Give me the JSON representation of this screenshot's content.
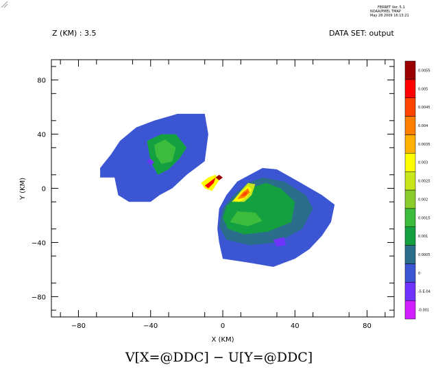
{
  "header": {
    "ferret_version": "FERRET Ver. 5.1",
    "organization": "NOAA/PMEL TMAP",
    "date": "May 28 2009 16:13:21",
    "z_label": "Z (KM) : 3.5",
    "dataset_label": "DATA SET: output"
  },
  "formula": "V[X=@DDC] − U[Y=@DDC]",
  "chart_data": {
    "type": "heatmap",
    "xlabel": "X (KM)",
    "ylabel": "Y (KM)",
    "xlim": [
      -95,
      95
    ],
    "ylim": [
      -95,
      95
    ],
    "x_ticks": [
      -80,
      -40,
      0,
      40,
      80
    ],
    "y_ticks": [
      80,
      40,
      0,
      -40,
      -80
    ],
    "x_tick_labels": [
      "−80",
      "−40",
      "0",
      "40",
      "80"
    ],
    "y_tick_labels": [
      "80",
      "40",
      "0",
      "−40",
      "−80"
    ],
    "colorbar": {
      "levels": [
        -0.001,
        -0.0005,
        0,
        0.0005,
        0.001,
        0.0015,
        0.002,
        0.0025,
        0.003,
        0.0035,
        0.004,
        0.0045,
        0.005,
        0.0055
      ],
      "labels": [
        "-0.001",
        "-5.E-04",
        "0",
        "0.0005",
        "0.001",
        "0.0015",
        "0.002",
        "0.0025",
        "0.003",
        "0.0035",
        "0.004",
        "0.0045",
        "0.005",
        "0.0055"
      ],
      "colors": [
        "#d21fff",
        "#6f35ff",
        "#3c56d3",
        "#2a6e8c",
        "#14a040",
        "#3dbb3d",
        "#8acc29",
        "#c9e61a",
        "#ffff00",
        "#ffb000",
        "#ff8000",
        "#ff4500",
        "#ff0000",
        "#9b0000"
      ]
    },
    "regions": [
      {
        "name": "west-blob-base",
        "level": 2,
        "poly": [
          [
            -68,
            15
          ],
          [
            -68,
            8
          ],
          [
            -60,
            8
          ],
          [
            -58,
            -5
          ],
          [
            -52,
            -10
          ],
          [
            -40,
            -10
          ],
          [
            -35,
            -5
          ],
          [
            -28,
            0
          ],
          [
            -20,
            10
          ],
          [
            -10,
            20
          ],
          [
            -8,
            40
          ],
          [
            -10,
            55
          ],
          [
            -25,
            55
          ],
          [
            -38,
            50
          ],
          [
            -48,
            45
          ],
          [
            -57,
            35
          ],
          [
            -62,
            25
          ]
        ]
      },
      {
        "name": "west-blob-green",
        "level": 4,
        "poly": [
          [
            -42,
            35
          ],
          [
            -34,
            40
          ],
          [
            -26,
            40
          ],
          [
            -20,
            30
          ],
          [
            -24,
            22
          ],
          [
            -30,
            14
          ],
          [
            -36,
            10
          ],
          [
            -40,
            20
          ]
        ]
      },
      {
        "name": "west-blob-green-2",
        "level": 5,
        "poly": [
          [
            -38,
            32
          ],
          [
            -32,
            36
          ],
          [
            -26,
            30
          ],
          [
            -28,
            20
          ],
          [
            -34,
            18
          ],
          [
            -37,
            24
          ]
        ]
      },
      {
        "name": "west-blob-purple",
        "level": 1,
        "poly": [
          [
            -42,
            20
          ],
          [
            -40,
            22
          ],
          [
            -38,
            19
          ],
          [
            -40,
            17
          ]
        ]
      },
      {
        "name": "east-blob-base",
        "level": 2,
        "poly": [
          [
            -2,
            -15
          ],
          [
            2,
            -5
          ],
          [
            8,
            5
          ],
          [
            15,
            10
          ],
          [
            22,
            15
          ],
          [
            30,
            14
          ],
          [
            42,
            5
          ],
          [
            55,
            -5
          ],
          [
            62,
            -12
          ],
          [
            60,
            -25
          ],
          [
            55,
            -35
          ],
          [
            48,
            -45
          ],
          [
            40,
            -52
          ],
          [
            28,
            -58
          ],
          [
            15,
            -55
          ],
          [
            0,
            -52
          ],
          [
            -2,
            -40
          ],
          [
            -3,
            -30
          ]
        ]
      },
      {
        "name": "east-blob-teal",
        "level": 3,
        "poly": [
          [
            0,
            -15
          ],
          [
            6,
            -5
          ],
          [
            14,
            4
          ],
          [
            22,
            8
          ],
          [
            34,
            5
          ],
          [
            46,
            -5
          ],
          [
            50,
            -15
          ],
          [
            44,
            -30
          ],
          [
            30,
            -40
          ],
          [
            15,
            -42
          ],
          [
            2,
            -38
          ],
          [
            -2,
            -28
          ]
        ]
      },
      {
        "name": "east-blob-green",
        "level": 4,
        "poly": [
          [
            2,
            -13
          ],
          [
            8,
            -6
          ],
          [
            15,
            0
          ],
          [
            24,
            4
          ],
          [
            32,
            0
          ],
          [
            40,
            -10
          ],
          [
            38,
            -25
          ],
          [
            25,
            -32
          ],
          [
            12,
            -34
          ],
          [
            3,
            -30
          ],
          [
            0,
            -22
          ]
        ]
      },
      {
        "name": "east-blob-green-2",
        "level": 5,
        "poly": [
          [
            4,
            -25
          ],
          [
            14,
            -28
          ],
          [
            22,
            -24
          ],
          [
            18,
            -18
          ],
          [
            8,
            -17
          ]
        ]
      },
      {
        "name": "east-blob-yellowgreen",
        "level": 7,
        "poly": [
          [
            5,
            -10
          ],
          [
            10,
            -2
          ],
          [
            14,
            4
          ],
          [
            18,
            3
          ],
          [
            16,
            -5
          ],
          [
            12,
            -10
          ]
        ]
      },
      {
        "name": "east-blob-yellow",
        "level": 8,
        "poly": [
          [
            6,
            -9
          ],
          [
            10,
            -3
          ],
          [
            14,
            2
          ],
          [
            16,
            -1
          ],
          [
            13,
            -7
          ],
          [
            9,
            -10
          ]
        ]
      },
      {
        "name": "east-blob-orange",
        "level": 10,
        "poly": [
          [
            8,
            -8
          ],
          [
            11,
            -3
          ],
          [
            14,
            0
          ],
          [
            15,
            -3
          ],
          [
            12,
            -7
          ]
        ]
      },
      {
        "name": "east-blob-red",
        "level": 11,
        "poly": [
          [
            10,
            -6
          ],
          [
            12,
            -3
          ],
          [
            14,
            -2
          ],
          [
            13,
            -5
          ]
        ]
      },
      {
        "name": "east-blob-purple",
        "level": 1,
        "poly": [
          [
            28,
            -38
          ],
          [
            34,
            -36
          ],
          [
            35,
            -42
          ],
          [
            30,
            -43
          ]
        ]
      },
      {
        "name": "center-streak-yellow",
        "level": 8,
        "poly": [
          [
            -12,
            4
          ],
          [
            -8,
            8
          ],
          [
            -4,
            10
          ],
          [
            -2,
            6
          ],
          [
            -6,
            -2
          ],
          [
            -10,
            0
          ]
        ]
      },
      {
        "name": "center-streak-red",
        "level": 12,
        "poly": [
          [
            -10,
            2
          ],
          [
            -6,
            6
          ],
          [
            -4,
            8
          ],
          [
            -5,
            4
          ],
          [
            -8,
            0
          ]
        ]
      },
      {
        "name": "center-streak-darkred",
        "level": 13,
        "poly": [
          [
            -4,
            8
          ],
          [
            -2,
            10
          ],
          [
            0,
            8
          ],
          [
            -2,
            6
          ]
        ]
      }
    ]
  }
}
